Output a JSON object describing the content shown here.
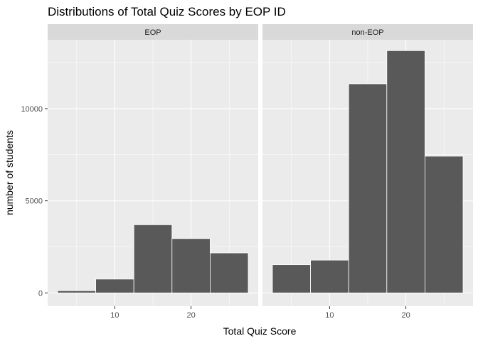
{
  "chart_data": {
    "type": "bar",
    "title": "Distributions of Total Quiz Scores by EOP ID",
    "xlabel": "Total Quiz Score",
    "ylabel": "number of students",
    "xlim": [
      2.5,
      27.5
    ],
    "ylim": [
      0,
      13200
    ],
    "x_ticks": [
      10,
      20
    ],
    "y_ticks": [
      0,
      5000,
      10000
    ],
    "bin_edges": [
      2.5,
      7.5,
      12.5,
      17.5,
      22.5,
      27.5
    ],
    "bar_fill": "#595959",
    "bar_outline": "#ffffff",
    "panel_background": "#ebebeb",
    "strip_background": "#d9d9d9",
    "grid": true,
    "facets": [
      {
        "label": "EOP",
        "values": [
          120,
          750,
          3700,
          2950,
          2170
        ]
      },
      {
        "label": "non-EOP",
        "values": [
          1530,
          1780,
          11350,
          13150,
          7420
        ]
      }
    ]
  }
}
